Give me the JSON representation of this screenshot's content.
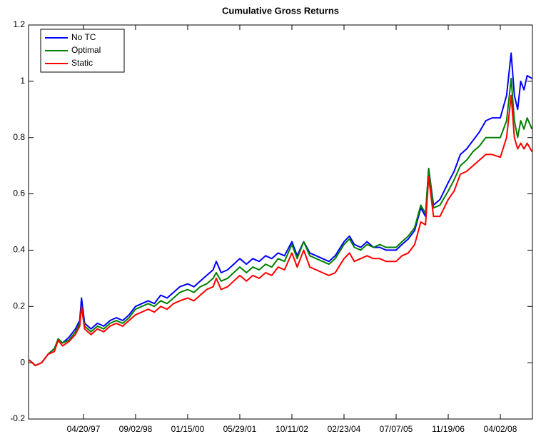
{
  "chart_data": {
    "type": "line",
    "title": "Cumulative Gross Returns",
    "x": [
      "11/15/95",
      "01/15/96",
      "03/15/96",
      "05/15/96",
      "07/15/96",
      "08/20/96",
      "10/01/96",
      "12/01/96",
      "02/01/97",
      "03/15/97",
      "04/01/97",
      "05/01/97",
      "07/01/97",
      "09/01/97",
      "11/01/97",
      "01/01/98",
      "03/01/98",
      "05/01/98",
      "07/01/98",
      "09/01/98",
      "11/01/98",
      "01/01/99",
      "03/01/99",
      "05/01/99",
      "07/01/99",
      "09/01/99",
      "11/01/99",
      "01/15/00",
      "03/15/00",
      "05/15/00",
      "07/15/00",
      "09/15/00",
      "10/15/00",
      "12/01/00",
      "02/01/01",
      "04/01/01",
      "05/29/01",
      "08/01/01",
      "10/01/01",
      "12/01/01",
      "02/01/02",
      "04/01/02",
      "06/01/02",
      "08/01/02",
      "10/11/02",
      "12/01/02",
      "02/01/03",
      "04/01/03",
      "06/01/03",
      "08/01/03",
      "10/01/03",
      "12/01/03",
      "02/23/04",
      "04/15/04",
      "06/01/04",
      "08/01/04",
      "10/01/04",
      "12/01/04",
      "02/01/05",
      "04/01/05",
      "07/07/05",
      "09/01/05",
      "11/01/05",
      "01/01/06",
      "03/01/06",
      "04/15/06",
      "05/15/06",
      "07/01/06",
      "09/01/06",
      "11/19/06",
      "01/15/07",
      "03/15/07",
      "05/15/07",
      "07/15/07",
      "09/15/07",
      "11/15/07",
      "01/15/08",
      "04/02/08",
      "06/01/08",
      "07/15/08",
      "08/15/08",
      "09/15/08",
      "10/15/08",
      "11/15/08",
      "12/15/08",
      "01/31/09"
    ],
    "series": [
      {
        "name": "No TC",
        "color": "#0000ff",
        "values": [
          0.01,
          -0.01,
          0.0,
          0.03,
          0.05,
          0.08,
          0.07,
          0.09,
          0.12,
          0.15,
          0.23,
          0.14,
          0.12,
          0.14,
          0.13,
          0.15,
          0.16,
          0.15,
          0.17,
          0.2,
          0.21,
          0.22,
          0.21,
          0.24,
          0.23,
          0.25,
          0.27,
          0.28,
          0.27,
          0.29,
          0.31,
          0.33,
          0.36,
          0.32,
          0.33,
          0.35,
          0.37,
          0.35,
          0.37,
          0.36,
          0.38,
          0.37,
          0.39,
          0.38,
          0.43,
          0.38,
          0.43,
          0.39,
          0.38,
          0.37,
          0.36,
          0.38,
          0.43,
          0.45,
          0.42,
          0.41,
          0.43,
          0.41,
          0.41,
          0.4,
          0.4,
          0.42,
          0.44,
          0.47,
          0.55,
          0.52,
          0.69,
          0.56,
          0.58,
          0.64,
          0.68,
          0.74,
          0.76,
          0.79,
          0.82,
          0.86,
          0.87,
          0.87,
          0.95,
          1.1,
          0.95,
          0.9,
          1.0,
          0.97,
          1.02,
          1.01
        ]
      },
      {
        "name": "Optimal",
        "color": "#008000",
        "values": [
          0.01,
          -0.01,
          0.0,
          0.03,
          0.05,
          0.085,
          0.07,
          0.08,
          0.11,
          0.14,
          0.2,
          0.13,
          0.11,
          0.13,
          0.12,
          0.14,
          0.15,
          0.14,
          0.16,
          0.19,
          0.2,
          0.21,
          0.2,
          0.22,
          0.21,
          0.23,
          0.25,
          0.26,
          0.25,
          0.27,
          0.28,
          0.3,
          0.32,
          0.29,
          0.3,
          0.32,
          0.34,
          0.32,
          0.34,
          0.33,
          0.35,
          0.34,
          0.37,
          0.36,
          0.42,
          0.37,
          0.43,
          0.38,
          0.37,
          0.36,
          0.35,
          0.37,
          0.42,
          0.44,
          0.41,
          0.4,
          0.42,
          0.41,
          0.42,
          0.41,
          0.41,
          0.43,
          0.45,
          0.48,
          0.56,
          0.53,
          0.69,
          0.55,
          0.56,
          0.61,
          0.65,
          0.7,
          0.72,
          0.75,
          0.77,
          0.8,
          0.8,
          0.8,
          0.86,
          1.01,
          0.86,
          0.8,
          0.86,
          0.83,
          0.87,
          0.83
        ]
      },
      {
        "name": "Static",
        "color": "#ff0000",
        "values": [
          0.01,
          -0.01,
          0.0,
          0.03,
          0.04,
          0.08,
          0.06,
          0.075,
          0.1,
          0.13,
          0.2,
          0.12,
          0.1,
          0.12,
          0.11,
          0.13,
          0.14,
          0.13,
          0.15,
          0.17,
          0.18,
          0.19,
          0.18,
          0.2,
          0.19,
          0.21,
          0.22,
          0.23,
          0.22,
          0.24,
          0.26,
          0.27,
          0.3,
          0.26,
          0.27,
          0.29,
          0.31,
          0.29,
          0.31,
          0.3,
          0.32,
          0.31,
          0.34,
          0.33,
          0.39,
          0.34,
          0.4,
          0.34,
          0.33,
          0.32,
          0.31,
          0.32,
          0.37,
          0.39,
          0.36,
          0.37,
          0.38,
          0.37,
          0.37,
          0.36,
          0.36,
          0.38,
          0.39,
          0.42,
          0.5,
          0.49,
          0.66,
          0.52,
          0.52,
          0.58,
          0.61,
          0.67,
          0.68,
          0.7,
          0.72,
          0.74,
          0.74,
          0.73,
          0.8,
          0.95,
          0.8,
          0.76,
          0.78,
          0.76,
          0.78,
          0.75
        ]
      }
    ],
    "xlim": [
      "11/10/95",
      "02/04/09"
    ],
    "xticks": [
      "04/20/97",
      "09/02/98",
      "01/15/00",
      "05/29/01",
      "10/11/02",
      "02/23/04",
      "07/07/05",
      "11/19/06",
      "04/02/08"
    ],
    "ylim": [
      -0.2,
      1.2
    ],
    "yticks": [
      -0.2,
      0,
      0.2,
      0.4,
      0.6,
      0.8,
      1,
      1.2
    ],
    "legend": "upper left"
  }
}
